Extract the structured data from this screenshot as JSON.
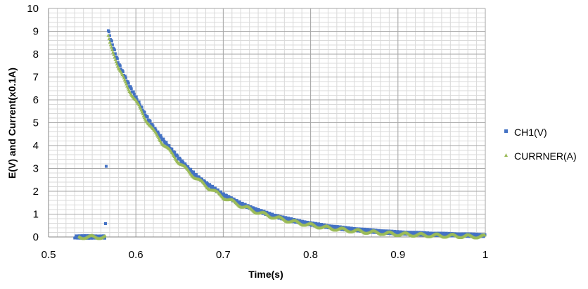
{
  "chart_data": {
    "type": "scatter",
    "title": "",
    "xlabel": "Time(s)",
    "ylabel": "E(V) and Current(x0.1A)",
    "xlim": [
      0.5,
      1.0
    ],
    "ylim": [
      0,
      10
    ],
    "x_ticks": [
      "0.5",
      "0.6",
      "0.7",
      "0.8",
      "0.9",
      "1"
    ],
    "y_ticks": [
      "0",
      "1",
      "2",
      "3",
      "4",
      "5",
      "6",
      "7",
      "8",
      "9",
      "10"
    ],
    "grid": true,
    "legend_position": "right",
    "series": [
      {
        "name": "CH1(V)",
        "color": "#4472C4",
        "x": [
          0.53,
          0.535,
          0.54,
          0.545,
          0.55,
          0.555,
          0.56,
          0.565,
          0.568,
          0.57,
          0.575,
          0.58,
          0.59,
          0.6,
          0.61,
          0.62,
          0.63,
          0.64,
          0.65,
          0.66,
          0.67,
          0.68,
          0.69,
          0.7,
          0.72,
          0.74,
          0.76,
          0.78,
          0.8,
          0.82,
          0.84,
          0.86,
          0.88,
          0.9,
          0.92,
          0.94,
          0.96,
          0.98,
          1.0
        ],
        "y": [
          0.0,
          0.0,
          0.0,
          0.0,
          0.0,
          0.0,
          0.0,
          0.0,
          9.1,
          8.8,
          8.2,
          7.6,
          6.8,
          6.1,
          5.4,
          4.8,
          4.3,
          3.85,
          3.4,
          3.0,
          2.65,
          2.35,
          2.1,
          1.85,
          1.45,
          1.15,
          0.9,
          0.72,
          0.57,
          0.45,
          0.36,
          0.29,
          0.23,
          0.18,
          0.15,
          0.12,
          0.1,
          0.08,
          0.06
        ]
      },
      {
        "name": "CURRNER(A)",
        "color": "#9BBB59",
        "x": [
          0.535,
          0.545,
          0.555,
          0.565,
          0.568,
          0.57,
          0.575,
          0.58,
          0.59,
          0.6,
          0.61,
          0.62,
          0.63,
          0.64,
          0.65,
          0.66,
          0.67,
          0.68,
          0.69,
          0.7,
          0.72,
          0.74,
          0.76,
          0.78,
          0.8,
          0.82,
          0.84,
          0.86,
          0.88,
          0.9,
          0.92,
          0.94,
          0.96,
          0.98,
          1.0
        ],
        "y": [
          0.0,
          0.0,
          0.0,
          0.0,
          8.8,
          8.5,
          8.0,
          7.4,
          6.6,
          5.95,
          5.25,
          4.65,
          4.15,
          3.7,
          3.25,
          2.88,
          2.55,
          2.25,
          2.0,
          1.75,
          1.38,
          1.08,
          0.85,
          0.67,
          0.52,
          0.4,
          0.31,
          0.24,
          0.18,
          0.13,
          0.1,
          0.07,
          0.05,
          0.03,
          0.02
        ]
      }
    ]
  }
}
